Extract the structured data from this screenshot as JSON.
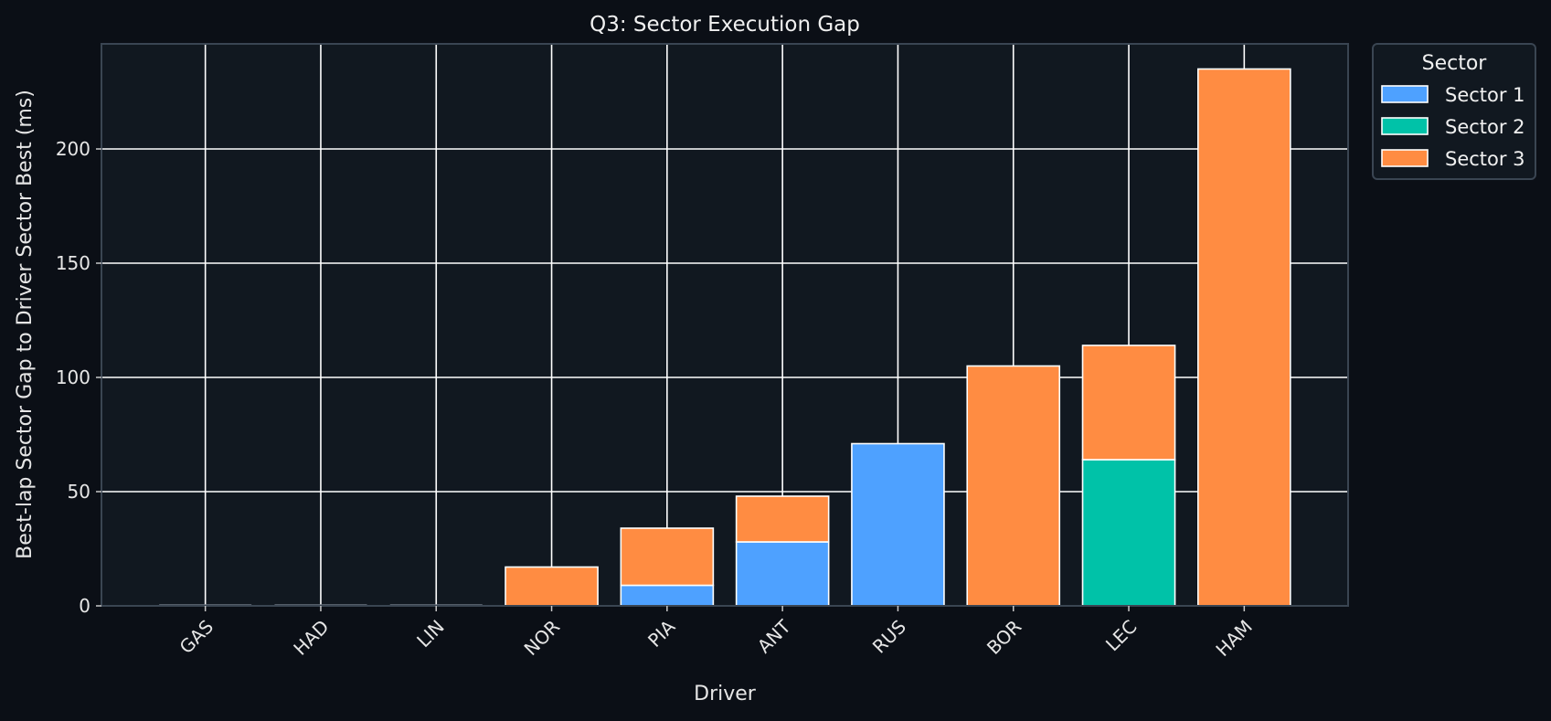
{
  "chart_data": {
    "type": "bar",
    "stacked": true,
    "title": "Q3: Sector Execution Gap",
    "xlabel": "Driver",
    "ylabel": "Best-lap Sector Gap to Driver Sector Best (ms)",
    "ylim": [
      0,
      246
    ],
    "yticks": [
      0,
      50,
      100,
      150,
      200
    ],
    "grid": true,
    "legend": {
      "title": "Sector",
      "placement": "outside-top-right"
    },
    "categories": [
      "GAS",
      "HAD",
      "LIN",
      "NOR",
      "PIA",
      "ANT",
      "RUS",
      "BOR",
      "LEC",
      "HAM"
    ],
    "series": [
      {
        "name": "Sector 1",
        "color": "#4ea1ff",
        "values": [
          0,
          0,
          0,
          0,
          9,
          28,
          71,
          0,
          0,
          0
        ]
      },
      {
        "name": "Sector 2",
        "color": "#00c2a8",
        "values": [
          0,
          0,
          0,
          0,
          0,
          0,
          0,
          0,
          64,
          0
        ]
      },
      {
        "name": "Sector 3",
        "color": "#ff8c42",
        "values": [
          0,
          0,
          0,
          17,
          25,
          20,
          0,
          105,
          50,
          235
        ]
      }
    ]
  }
}
